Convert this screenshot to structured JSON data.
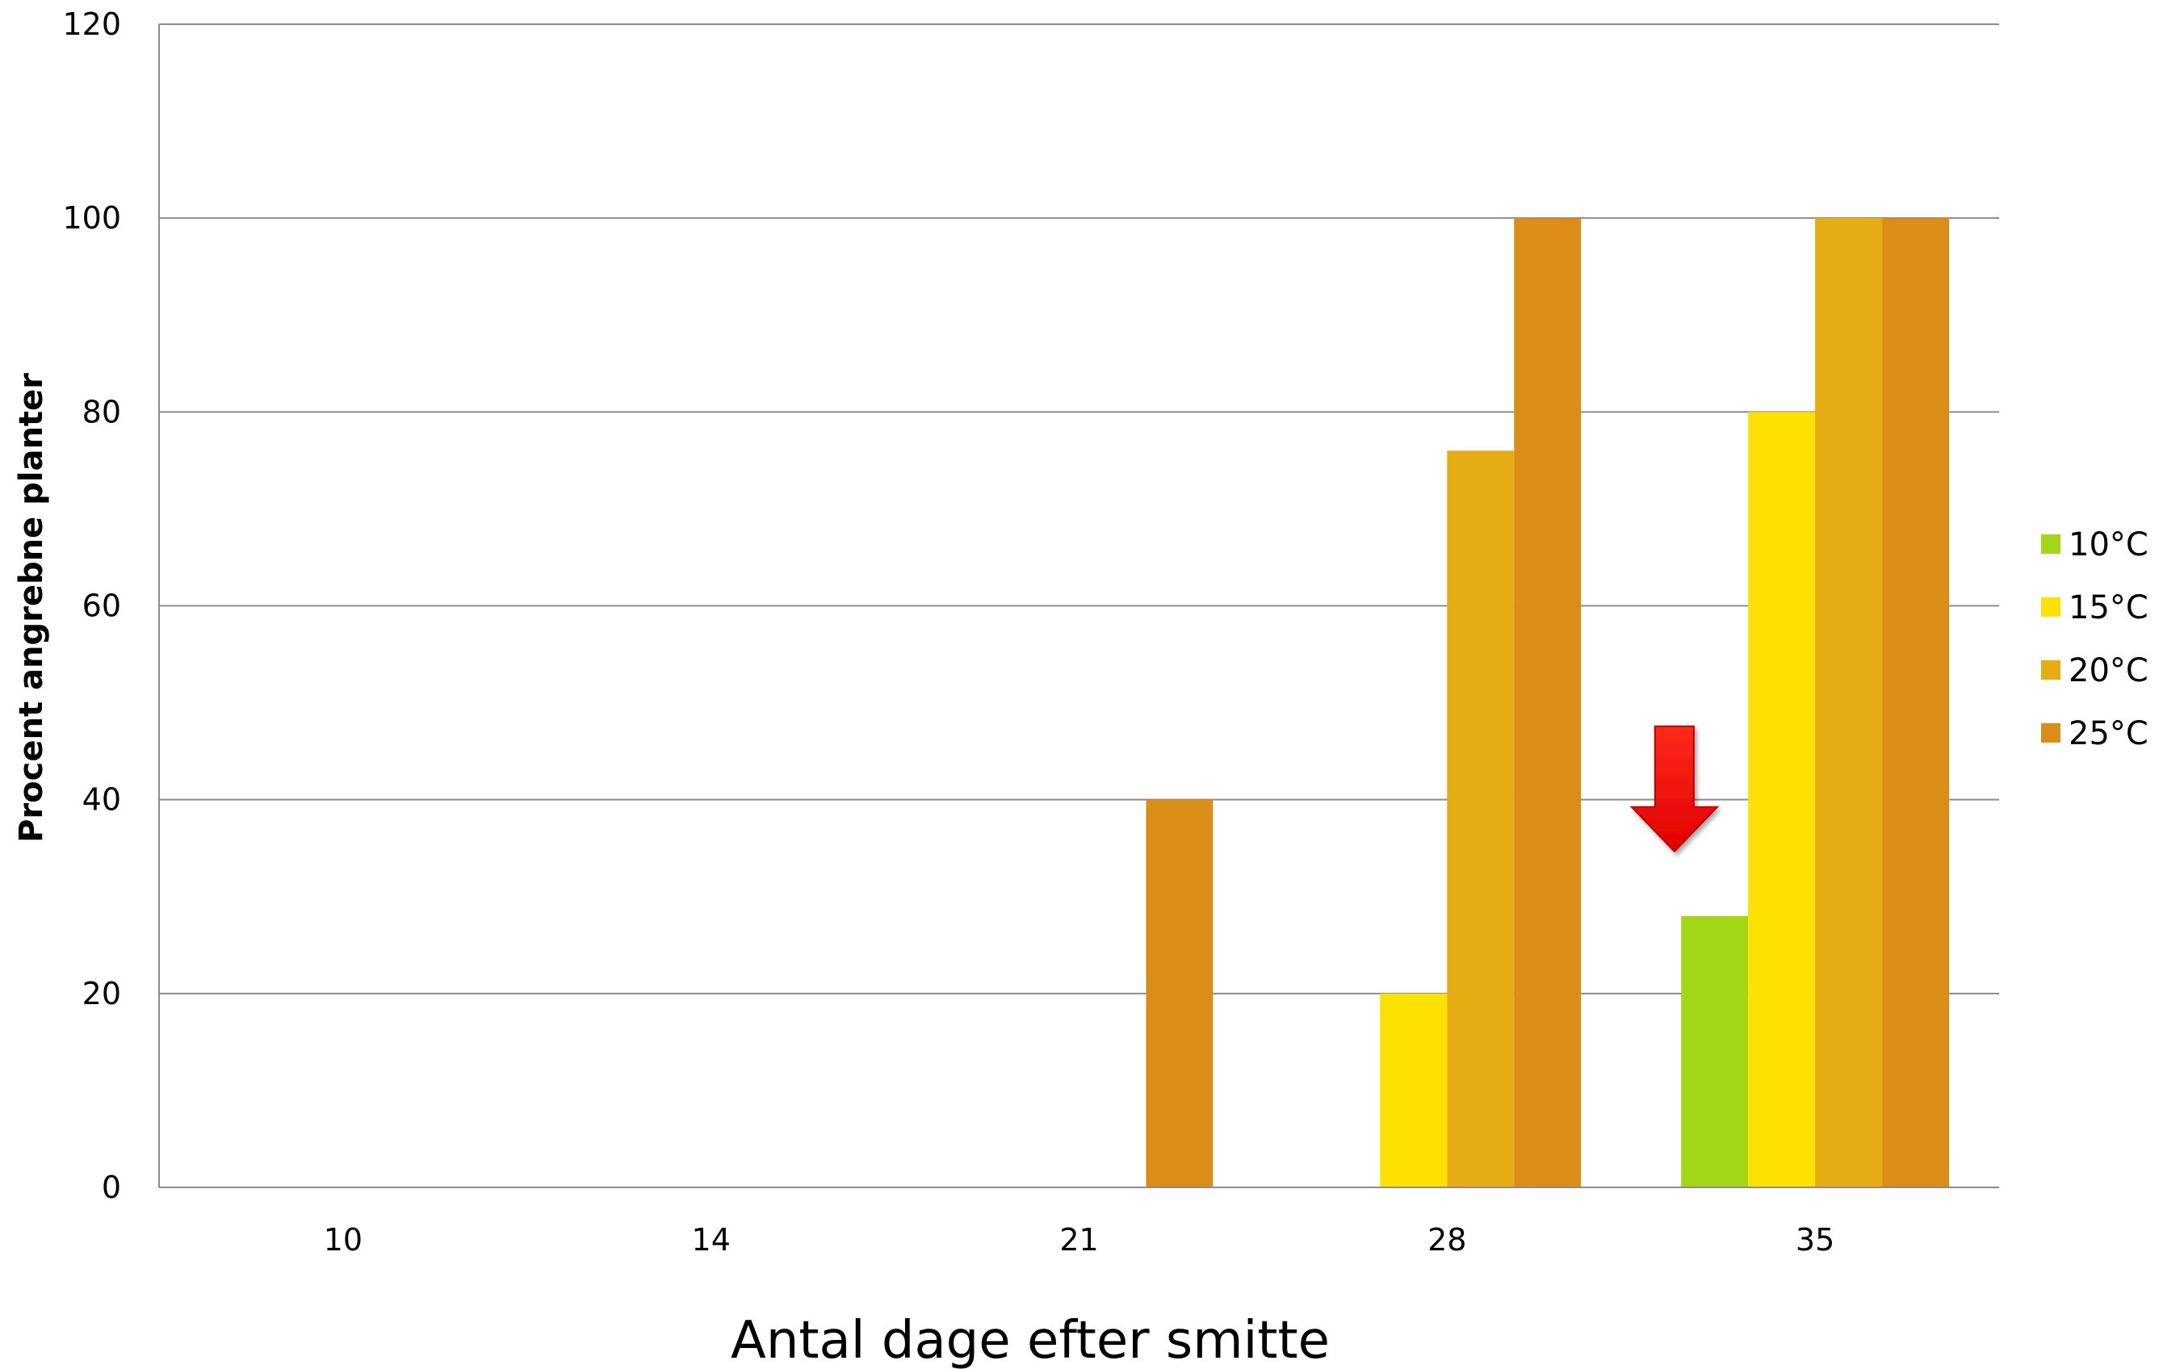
{
  "chart_data": {
    "type": "bar",
    "title": "",
    "xlabel": "Antal dage efter smitte",
    "ylabel": "Procent angrebne planter",
    "categories": [
      "10",
      "14",
      "21",
      "28",
      "35"
    ],
    "series": [
      {
        "name": "10°C",
        "color": "#a3d616",
        "values": [
          0,
          0,
          0,
          0,
          28
        ]
      },
      {
        "name": "15°C",
        "color": "#fde100",
        "values": [
          0,
          0,
          0,
          20,
          80
        ]
      },
      {
        "name": "20°C",
        "color": "#e6ac14",
        "values": [
          0,
          0,
          0,
          76,
          100
        ]
      },
      {
        "name": "25°C",
        "color": "#db8e17",
        "values": [
          0,
          0,
          40,
          100,
          100
        ]
      }
    ],
    "ylim": [
      0,
      120
    ],
    "yticks": [
      0,
      20,
      40,
      60,
      80,
      100,
      120
    ],
    "grid": true,
    "legend_position": "right",
    "annotation": {
      "type": "arrow-down",
      "color": "#ff0000",
      "category": "35",
      "series": "10°C"
    }
  }
}
